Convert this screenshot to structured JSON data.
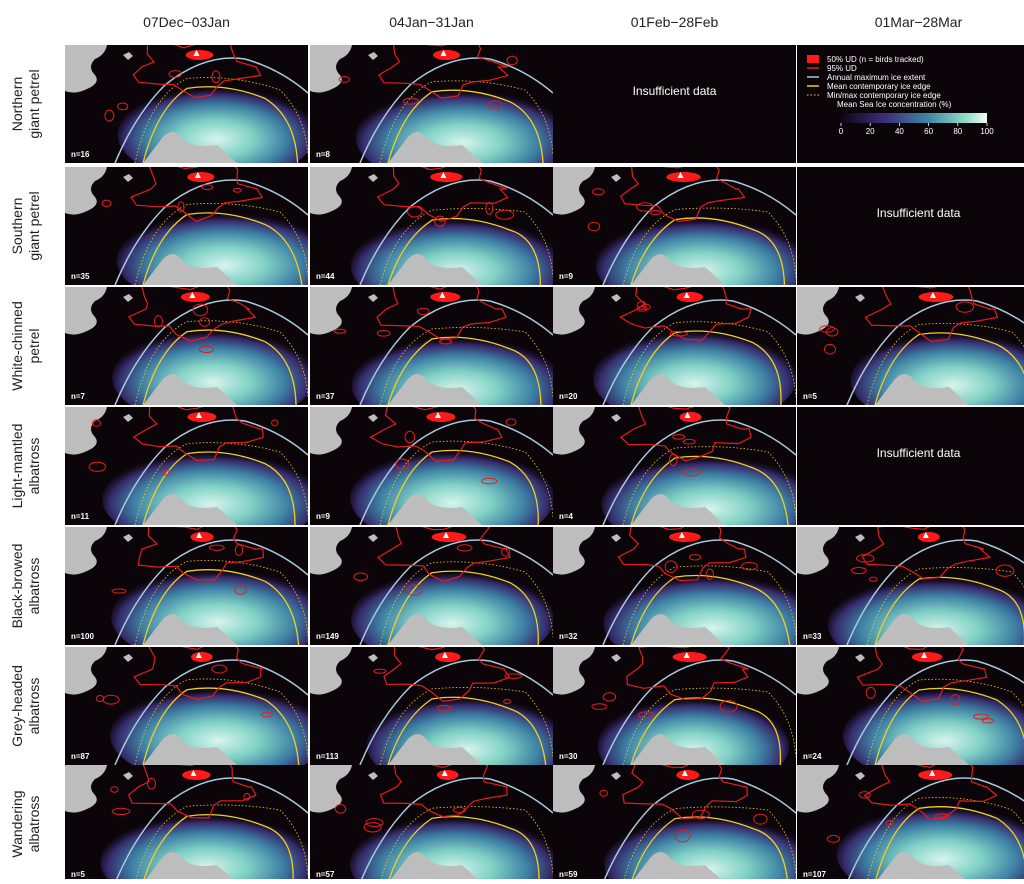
{
  "columns": [
    "07Dec−03Jan",
    "04Jan−31Jan",
    "01Feb−28Feb",
    "01Mar−28Mar"
  ],
  "rows": [
    {
      "label": [
        "Northern",
        "giant petrel"
      ],
      "cells": [
        "n=16",
        "n=8",
        "Insufficient data"
      ]
    },
    {
      "label": [
        "Southern",
        "giant petrel"
      ],
      "cells": [
        "n=35",
        "n=44",
        "n=9",
        "Insufficient data"
      ]
    },
    {
      "label": [
        "White-chinned",
        "petrel"
      ],
      "cells": [
        "n=7",
        "n=37",
        "n=20",
        "n=5"
      ]
    },
    {
      "label": [
        "Light-mantled",
        "albatross"
      ],
      "cells": [
        "n=11",
        "n=9",
        "n=4",
        "Insufficient data"
      ]
    },
    {
      "label": [
        "Black-browed",
        "albatross"
      ],
      "cells": [
        "n=100",
        "n=149",
        "n=32",
        "n=33"
      ]
    },
    {
      "label": [
        "Grey-headed",
        "albatross"
      ],
      "cells": [
        "n=87",
        "n=113",
        "n=30",
        "n=24"
      ]
    },
    {
      "label": [
        "Wandering",
        "albatross"
      ],
      "cells": [
        "n=5",
        "n=57",
        "n=59",
        "n=107"
      ]
    }
  ],
  "legend": {
    "items": [
      "50% UD (n = birds tracked)",
      "95% UD",
      "Annual maximum ice extent",
      "Mean contemporary ice edge",
      "Min/max contemporary ice edge"
    ],
    "colorbar_title": "Mean Sea Ice concentration (%)",
    "colorbar_ticks": [
      0,
      20,
      40,
      60,
      80,
      100
    ]
  }
}
